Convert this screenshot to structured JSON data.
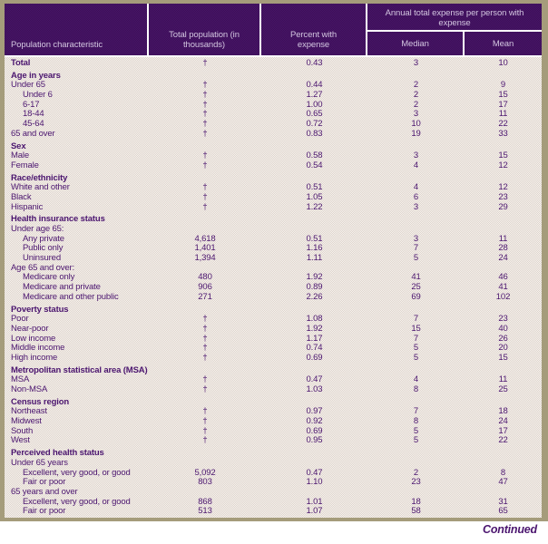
{
  "table": {
    "header": {
      "population_characteristic": "Population characteristic",
      "total_population": "Total population (in thousands)",
      "percent_with_expense": "Percent with expense",
      "annual_expense_group": "Annual total expense per person with expense",
      "median": "Median",
      "mean": "Mean"
    },
    "rows": [
      {
        "label": "Total",
        "type": "data",
        "bold": true,
        "indent": false,
        "values": [
          "†",
          "0.43",
          "3",
          "10"
        ]
      },
      {
        "label": "Age in years",
        "type": "section"
      },
      {
        "label": "Under 65",
        "type": "data",
        "indent": false,
        "values": [
          "†",
          "0.44",
          "2",
          "9"
        ]
      },
      {
        "label": "Under 6",
        "type": "data",
        "indent": true,
        "values": [
          "†",
          "1.27",
          "2",
          "15"
        ]
      },
      {
        "label": "6-17",
        "type": "data",
        "indent": true,
        "values": [
          "†",
          "1.00",
          "2",
          "17"
        ]
      },
      {
        "label": "18-44",
        "type": "data",
        "indent": true,
        "values": [
          "†",
          "0.65",
          "3",
          "11"
        ]
      },
      {
        "label": "45-64",
        "type": "data",
        "indent": true,
        "values": [
          "†",
          "0.72",
          "10",
          "22"
        ]
      },
      {
        "label": "65 and over",
        "type": "data",
        "indent": false,
        "values": [
          "†",
          "0.83",
          "19",
          "33"
        ]
      },
      {
        "label": "Sex",
        "type": "section"
      },
      {
        "label": "Male",
        "type": "data",
        "indent": false,
        "values": [
          "†",
          "0.58",
          "3",
          "15"
        ]
      },
      {
        "label": "Female",
        "type": "data",
        "indent": false,
        "values": [
          "†",
          "0.54",
          "4",
          "12"
        ]
      },
      {
        "label": "Race/ethnicity",
        "type": "section"
      },
      {
        "label": "White and other",
        "type": "data",
        "indent": false,
        "values": [
          "†",
          "0.51",
          "4",
          "12"
        ]
      },
      {
        "label": "Black",
        "type": "data",
        "indent": false,
        "values": [
          "†",
          "1.05",
          "6",
          "23"
        ]
      },
      {
        "label": "Hispanic",
        "type": "data",
        "indent": false,
        "values": [
          "†",
          "1.22",
          "3",
          "29"
        ]
      },
      {
        "label": "Health insurance status",
        "type": "section"
      },
      {
        "label": "Under age 65:",
        "type": "group"
      },
      {
        "label": "Any private",
        "type": "data",
        "indent": true,
        "values": [
          "4,618",
          "0.51",
          "3",
          "11"
        ]
      },
      {
        "label": "Public only",
        "type": "data",
        "indent": true,
        "values": [
          "1,401",
          "1.16",
          "7",
          "28"
        ]
      },
      {
        "label": "Uninsured",
        "type": "data",
        "indent": true,
        "values": [
          "1,394",
          "1.11",
          "5",
          "24"
        ]
      },
      {
        "label": "Age 65 and over:",
        "type": "group"
      },
      {
        "label": "Medicare only",
        "type": "data",
        "indent": true,
        "values": [
          "480",
          "1.92",
          "41",
          "46"
        ]
      },
      {
        "label": "Medicare and private",
        "type": "data",
        "indent": true,
        "values": [
          "906",
          "0.89",
          "25",
          "41"
        ]
      },
      {
        "label": "Medicare and other public",
        "type": "data",
        "indent": true,
        "values": [
          "271",
          "2.26",
          "69",
          "102"
        ]
      },
      {
        "label": "Poverty status",
        "type": "section"
      },
      {
        "label": "Poor",
        "type": "data",
        "indent": false,
        "values": [
          "†",
          "1.08",
          "7",
          "23"
        ]
      },
      {
        "label": "Near-poor",
        "type": "data",
        "indent": false,
        "values": [
          "†",
          "1.92",
          "15",
          "40"
        ]
      },
      {
        "label": "Low income",
        "type": "data",
        "indent": false,
        "values": [
          "†",
          "1.17",
          "7",
          "26"
        ]
      },
      {
        "label": "Middle income",
        "type": "data",
        "indent": false,
        "values": [
          "†",
          "0.74",
          "5",
          "20"
        ]
      },
      {
        "label": "High income",
        "type": "data",
        "indent": false,
        "values": [
          "†",
          "0.69",
          "5",
          "15"
        ]
      },
      {
        "label": "Metropolitan statistical area (MSA)",
        "type": "section"
      },
      {
        "label": "MSA",
        "type": "data",
        "indent": false,
        "values": [
          "†",
          "0.47",
          "4",
          "11"
        ]
      },
      {
        "label": "Non-MSA",
        "type": "data",
        "indent": false,
        "values": [
          "†",
          "1.03",
          "8",
          "25"
        ]
      },
      {
        "label": "Census region",
        "type": "section"
      },
      {
        "label": "Northeast",
        "type": "data",
        "indent": false,
        "values": [
          "†",
          "0.97",
          "7",
          "18"
        ]
      },
      {
        "label": "Midwest",
        "type": "data",
        "indent": false,
        "values": [
          "†",
          "0.92",
          "8",
          "24"
        ]
      },
      {
        "label": "South",
        "type": "data",
        "indent": false,
        "values": [
          "†",
          "0.69",
          "5",
          "17"
        ]
      },
      {
        "label": "West",
        "type": "data",
        "indent": false,
        "values": [
          "†",
          "0.95",
          "5",
          "22"
        ]
      },
      {
        "label": "Perceived health status",
        "type": "section"
      },
      {
        "label": "Under 65 years",
        "type": "group"
      },
      {
        "label": "Excellent, very good, or good",
        "type": "data",
        "indent": true,
        "values": [
          "5,092",
          "0.47",
          "2",
          "8"
        ]
      },
      {
        "label": "Fair or poor",
        "type": "data",
        "indent": true,
        "values": [
          "803",
          "1.10",
          "23",
          "47"
        ]
      },
      {
        "label": "65 years and over",
        "type": "group"
      },
      {
        "label": "Excellent, very good, or good",
        "type": "data",
        "indent": true,
        "values": [
          "868",
          "1.01",
          "18",
          "31"
        ]
      },
      {
        "label": "Fair or poor",
        "type": "data",
        "indent": true,
        "values": [
          "513",
          "1.07",
          "58",
          "65"
        ]
      }
    ],
    "continued_label": "Continued"
  },
  "colors": {
    "frame_border": "#a59c7b",
    "header_background": "#421261",
    "header_text": "#d3c6e0",
    "body_background": "#eae3dd",
    "body_text": "#4b156f",
    "separator_lines": "#ffffff"
  }
}
